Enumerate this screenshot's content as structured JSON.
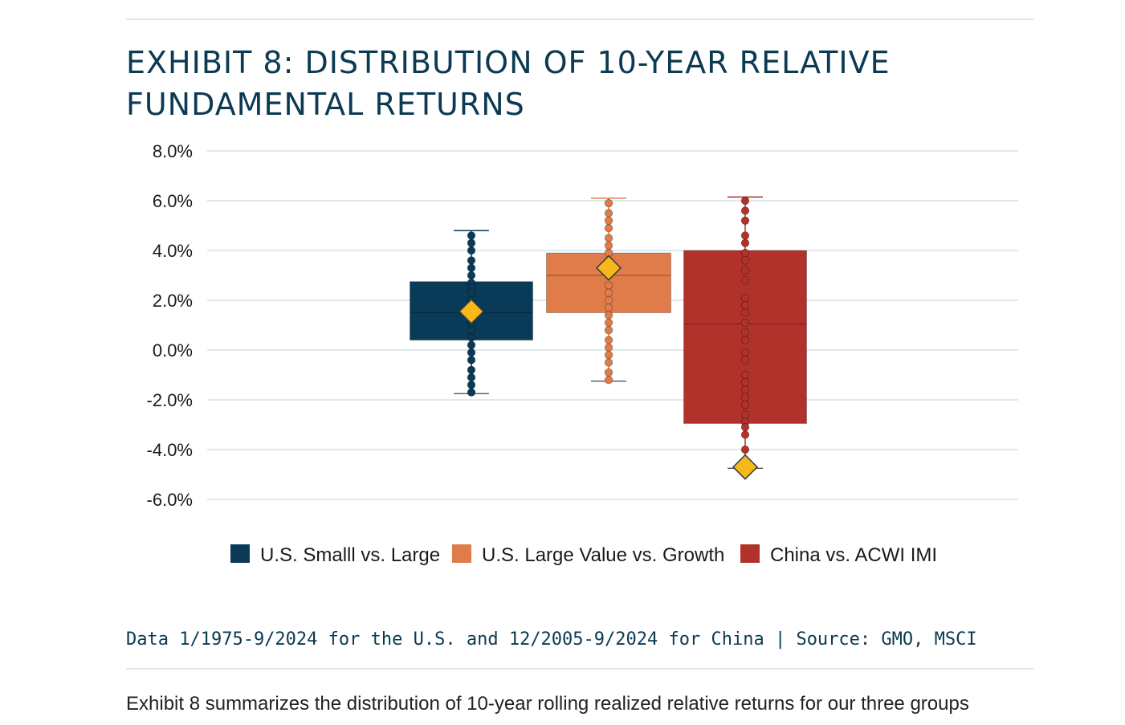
{
  "title_lines": [
    "EXHIBIT 8: DISTRIBUTION OF 10-YEAR RELATIVE",
    "FUNDAMENTAL RETURNS"
  ],
  "source_note": "Data 1/1975-9/2024 for the U.S. and 12/2005-9/2024 for China | Source: GMO, MSCI",
  "body_text": "Exhibit 8 summarizes the distribution of 10-year rolling realized relative returns for our three groups",
  "colors": {
    "rule": "#dce6ed",
    "title": "#0b3a52",
    "grid": "#d3e2ea",
    "mean_marker": "#f6b91a",
    "mean_marker_stroke": "#3a3a3a"
  },
  "chart_data": {
    "type": "box",
    "ylim": [
      -6,
      8
    ],
    "yticks": [
      8,
      6,
      4,
      2,
      0,
      -2,
      -4,
      -6
    ],
    "ytick_labels": [
      "8.0%",
      "6.0%",
      "4.0%",
      "2.0%",
      "0.0%",
      "-2.0%",
      "-4.0%",
      "-6.0%"
    ],
    "grid": true,
    "legend_position": "bottom",
    "series": [
      {
        "name": "U.S. Smalll vs. Large",
        "color": "#093a57",
        "min": -1.75,
        "q1": 0.4,
        "median": 1.5,
        "q3": 2.75,
        "max": 4.8,
        "mean": 1.55,
        "points": [
          4.6,
          4.3,
          4.0,
          3.6,
          3.3,
          3.0,
          2.7,
          2.5,
          2.3,
          2.0,
          1.7,
          1.4,
          1.1,
          0.8,
          0.5,
          0.2,
          -0.1,
          -0.4,
          -0.8,
          -1.1,
          -1.4,
          -1.7
        ]
      },
      {
        "name": "U.S. Large Value vs. Growth",
        "color": "#e07b4a",
        "min": -1.25,
        "q1": 1.5,
        "median": 3.0,
        "q3": 3.9,
        "max": 6.1,
        "mean": 3.3,
        "points": [
          5.9,
          5.5,
          5.2,
          4.9,
          4.5,
          4.2,
          3.9,
          3.6,
          3.3,
          3.0,
          2.6,
          2.3,
          2.0,
          1.7,
          1.4,
          1.1,
          0.8,
          0.4,
          0.1,
          -0.2,
          -0.5,
          -0.9,
          -1.2
        ]
      },
      {
        "name": "China vs. ACWI IMI",
        "color": "#b0322b",
        "min": -4.75,
        "q1": -2.95,
        "median": 1.05,
        "q3": 4.0,
        "max": 6.15,
        "mean": -4.7,
        "points": [
          6.0,
          5.6,
          5.2,
          4.6,
          4.3,
          3.9,
          3.6,
          3.2,
          2.8,
          2.1,
          1.8,
          1.5,
          1.1,
          0.7,
          0.4,
          -0.1,
          -0.4,
          -1.0,
          -1.3,
          -1.6,
          -1.9,
          -2.2,
          -2.6,
          -2.9,
          -3.1,
          -3.4,
          -4.0
        ]
      }
    ]
  }
}
